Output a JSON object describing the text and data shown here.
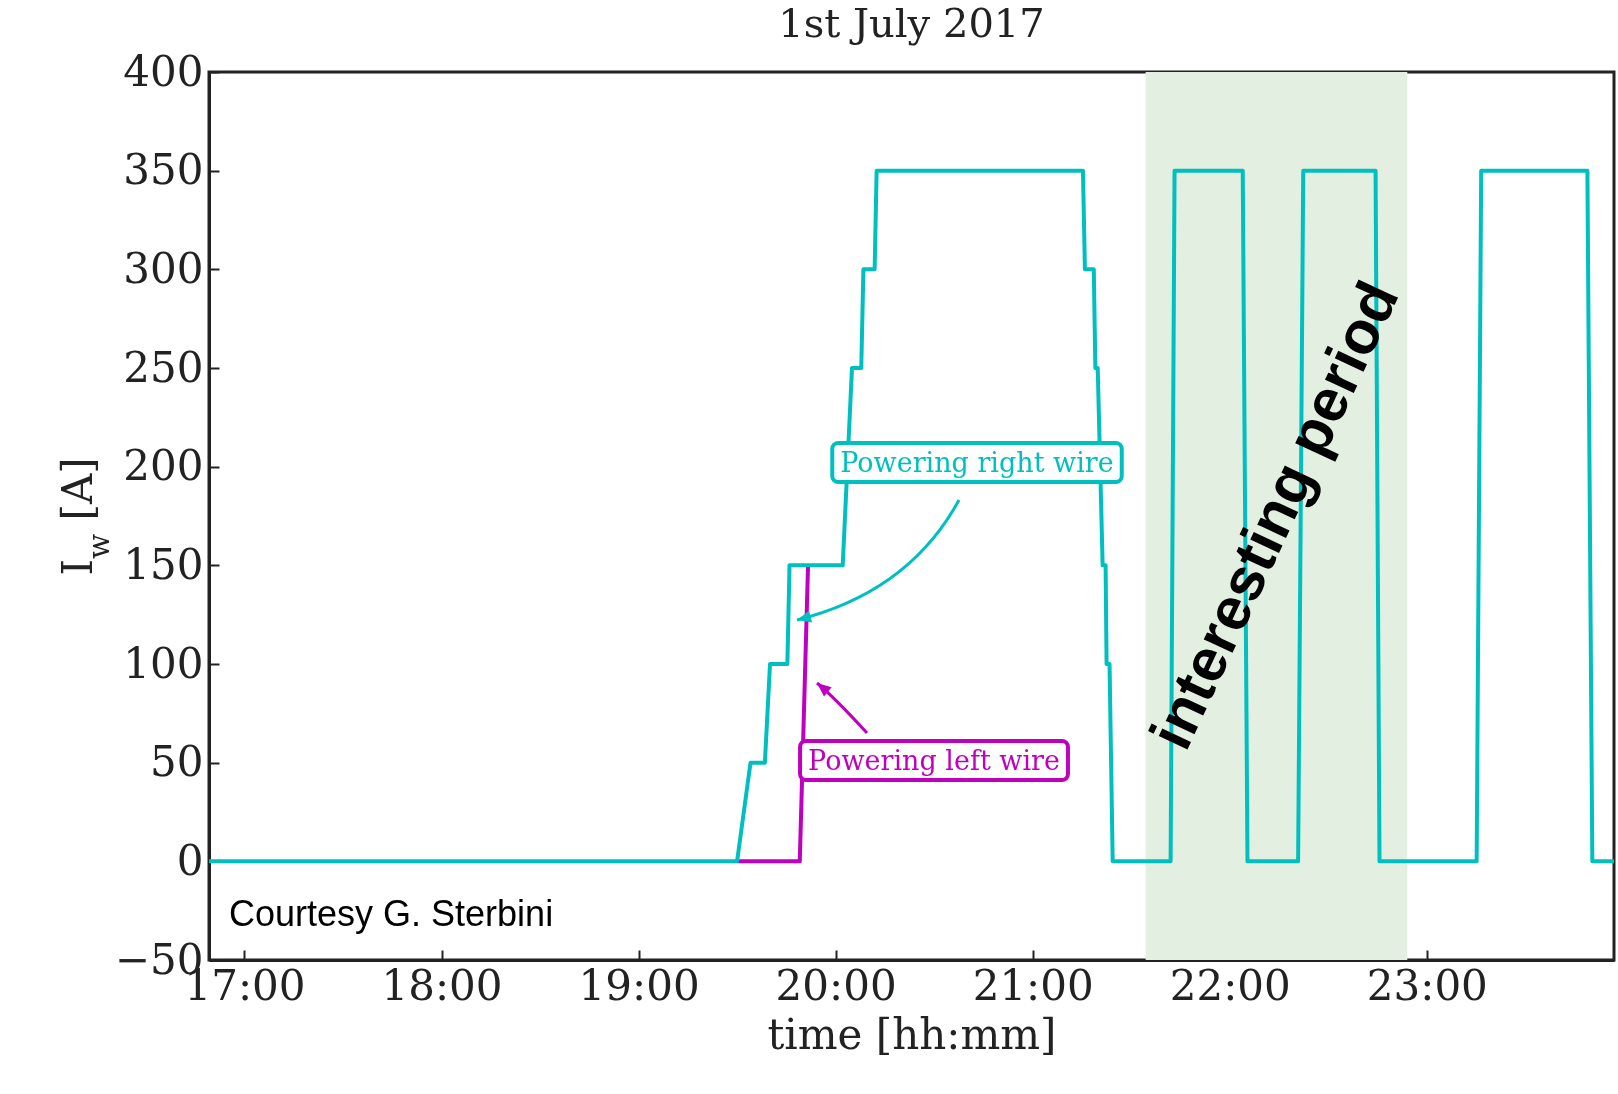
{
  "chart_data": {
    "type": "line",
    "title": "1st July 2017",
    "xlabel": "time [hh:mm]",
    "ylabel": "I$_{w}$ [A]",
    "xlim": [
      16.82,
      23.95
    ],
    "ylim": [
      -50,
      400
    ],
    "xticks": [
      {
        "value": 17,
        "label": "17:00"
      },
      {
        "value": 18,
        "label": "18:00"
      },
      {
        "value": 19,
        "label": "19:00"
      },
      {
        "value": 20,
        "label": "20:00"
      },
      {
        "value": 21,
        "label": "21:00"
      },
      {
        "value": 22,
        "label": "22:00"
      },
      {
        "value": 23,
        "label": "23:00"
      }
    ],
    "yticks": [
      -50,
      0,
      50,
      100,
      150,
      200,
      250,
      300,
      350,
      400
    ],
    "series": [
      {
        "color": "#bf00bf",
        "x": [
          19.5,
          19.818,
          19.86
        ],
        "values": [
          0,
          0,
          150
        ]
      },
      {
        "color": "#00bfbf",
        "x": [
          16.82,
          19.5,
          19.568,
          19.641,
          19.667,
          19.755,
          19.766,
          20.036,
          20.083,
          20.13,
          20.141,
          20.198,
          20.208,
          21.255,
          21.265,
          21.31,
          21.318,
          21.33,
          21.355,
          21.37,
          21.375,
          21.39,
          21.406,
          21.7,
          21.72,
          22.066,
          22.09,
          22.347,
          22.373,
          22.74,
          22.76,
          23.253,
          23.276,
          23.815,
          23.84,
          23.95
        ],
        "values": [
          0,
          0,
          50,
          50,
          100,
          100,
          150,
          150,
          250,
          250,
          300,
          300,
          350,
          350,
          300,
          300,
          250,
          250,
          150,
          150,
          100,
          100,
          0,
          0,
          350,
          350,
          0,
          0,
          350,
          350,
          0,
          0,
          350,
          350,
          0,
          0
        ]
      }
    ],
    "bands": [
      {
        "axis": "x",
        "from": 21.573,
        "to": 22.901,
        "label": "interesting period",
        "color": "#e3efe0"
      }
    ],
    "annotations": [
      "Powering left wire",
      "Powering right wire",
      "Courtesy G. Sterbini"
    ],
    "line_style": "solid",
    "marker": "none",
    "grid": false
  }
}
